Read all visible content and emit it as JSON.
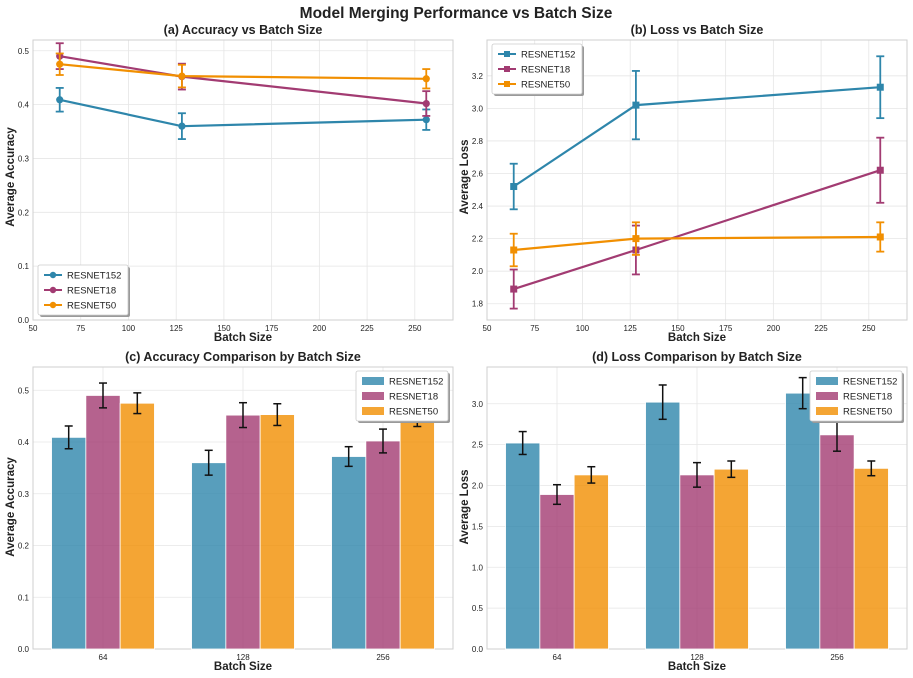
{
  "figure": {
    "title": "Model Merging Performance vs Batch Size"
  },
  "colors": {
    "RESNET152": "#2e86ab",
    "RESNET18": "#a23b72",
    "RESNET50": "#f18f01"
  },
  "chart_data": [
    {
      "id": "a",
      "type": "line",
      "title": "(a) Accuracy vs Batch Size",
      "xlabel": "Batch Size",
      "ylabel": "Average Accuracy",
      "xlim": [
        50,
        270
      ],
      "ylim": [
        0.0,
        0.52
      ],
      "xticks": [
        50,
        75,
        100,
        125,
        150,
        175,
        200,
        225,
        250
      ],
      "yticks": [
        0.0,
        0.1,
        0.2,
        0.3,
        0.4,
        0.5
      ],
      "ytick_decimals": 1,
      "marker": "circle",
      "legend": "lower-left",
      "x": [
        64,
        128,
        256
      ],
      "series": [
        {
          "name": "RESNET152",
          "values": [
            0.409,
            0.36,
            0.372
          ],
          "err": [
            0.022,
            0.024,
            0.019
          ]
        },
        {
          "name": "RESNET18",
          "values": [
            0.49,
            0.452,
            0.402
          ],
          "err": [
            0.024,
            0.024,
            0.023
          ]
        },
        {
          "name": "RESNET50",
          "values": [
            0.475,
            0.453,
            0.448
          ],
          "err": [
            0.02,
            0.021,
            0.018
          ]
        }
      ]
    },
    {
      "id": "b",
      "type": "line",
      "title": "(b) Loss vs Batch Size",
      "xlabel": "Batch Size",
      "ylabel": "Average Loss",
      "xlim": [
        50,
        270
      ],
      "ylim": [
        1.7,
        3.42
      ],
      "xticks": [
        50,
        75,
        100,
        125,
        150,
        175,
        200,
        225,
        250
      ],
      "yticks": [
        1.8,
        2.0,
        2.2,
        2.4,
        2.6,
        2.8,
        3.0,
        3.2
      ],
      "ytick_decimals": 1,
      "marker": "square",
      "legend": "upper-left",
      "x": [
        64,
        128,
        256
      ],
      "series": [
        {
          "name": "RESNET152",
          "values": [
            2.52,
            3.02,
            3.13
          ],
          "err": [
            0.14,
            0.21,
            0.19
          ]
        },
        {
          "name": "RESNET18",
          "values": [
            1.89,
            2.13,
            2.62
          ],
          "err": [
            0.12,
            0.15,
            0.2
          ]
        },
        {
          "name": "RESNET50",
          "values": [
            2.13,
            2.2,
            2.21
          ],
          "err": [
            0.1,
            0.1,
            0.09
          ]
        }
      ]
    },
    {
      "id": "c",
      "type": "bar",
      "title": "(c) Accuracy Comparison by Batch Size",
      "xlabel": "Batch Size",
      "ylabel": "Average Accuracy",
      "categories": [
        "64",
        "128",
        "256"
      ],
      "ylim": [
        0.0,
        0.545
      ],
      "yticks": [
        0.0,
        0.1,
        0.2,
        0.3,
        0.4,
        0.5
      ],
      "ytick_decimals": 1,
      "legend": "upper-right",
      "series": [
        {
          "name": "RESNET152",
          "values": [
            0.409,
            0.36,
            0.372
          ],
          "err": [
            0.022,
            0.024,
            0.019
          ]
        },
        {
          "name": "RESNET18",
          "values": [
            0.49,
            0.452,
            0.402
          ],
          "err": [
            0.024,
            0.024,
            0.023
          ]
        },
        {
          "name": "RESNET50",
          "values": [
            0.475,
            0.453,
            0.448
          ],
          "err": [
            0.02,
            0.021,
            0.018
          ]
        }
      ]
    },
    {
      "id": "d",
      "type": "bar",
      "title": "(d) Loss Comparison by Batch Size",
      "xlabel": "Batch Size",
      "ylabel": "Average Loss",
      "categories": [
        "64",
        "128",
        "256"
      ],
      "ylim": [
        0.0,
        3.45
      ],
      "yticks": [
        0.0,
        0.5,
        1.0,
        1.5,
        2.0,
        2.5,
        3.0
      ],
      "ytick_decimals": 1,
      "legend": "upper-right",
      "series": [
        {
          "name": "RESNET152",
          "values": [
            2.52,
            3.02,
            3.13
          ],
          "err": [
            0.14,
            0.21,
            0.19
          ]
        },
        {
          "name": "RESNET18",
          "values": [
            1.89,
            2.13,
            2.62
          ],
          "err": [
            0.12,
            0.15,
            0.2
          ]
        },
        {
          "name": "RESNET50",
          "values": [
            2.13,
            2.2,
            2.21
          ],
          "err": [
            0.1,
            0.1,
            0.09
          ]
        }
      ]
    }
  ]
}
